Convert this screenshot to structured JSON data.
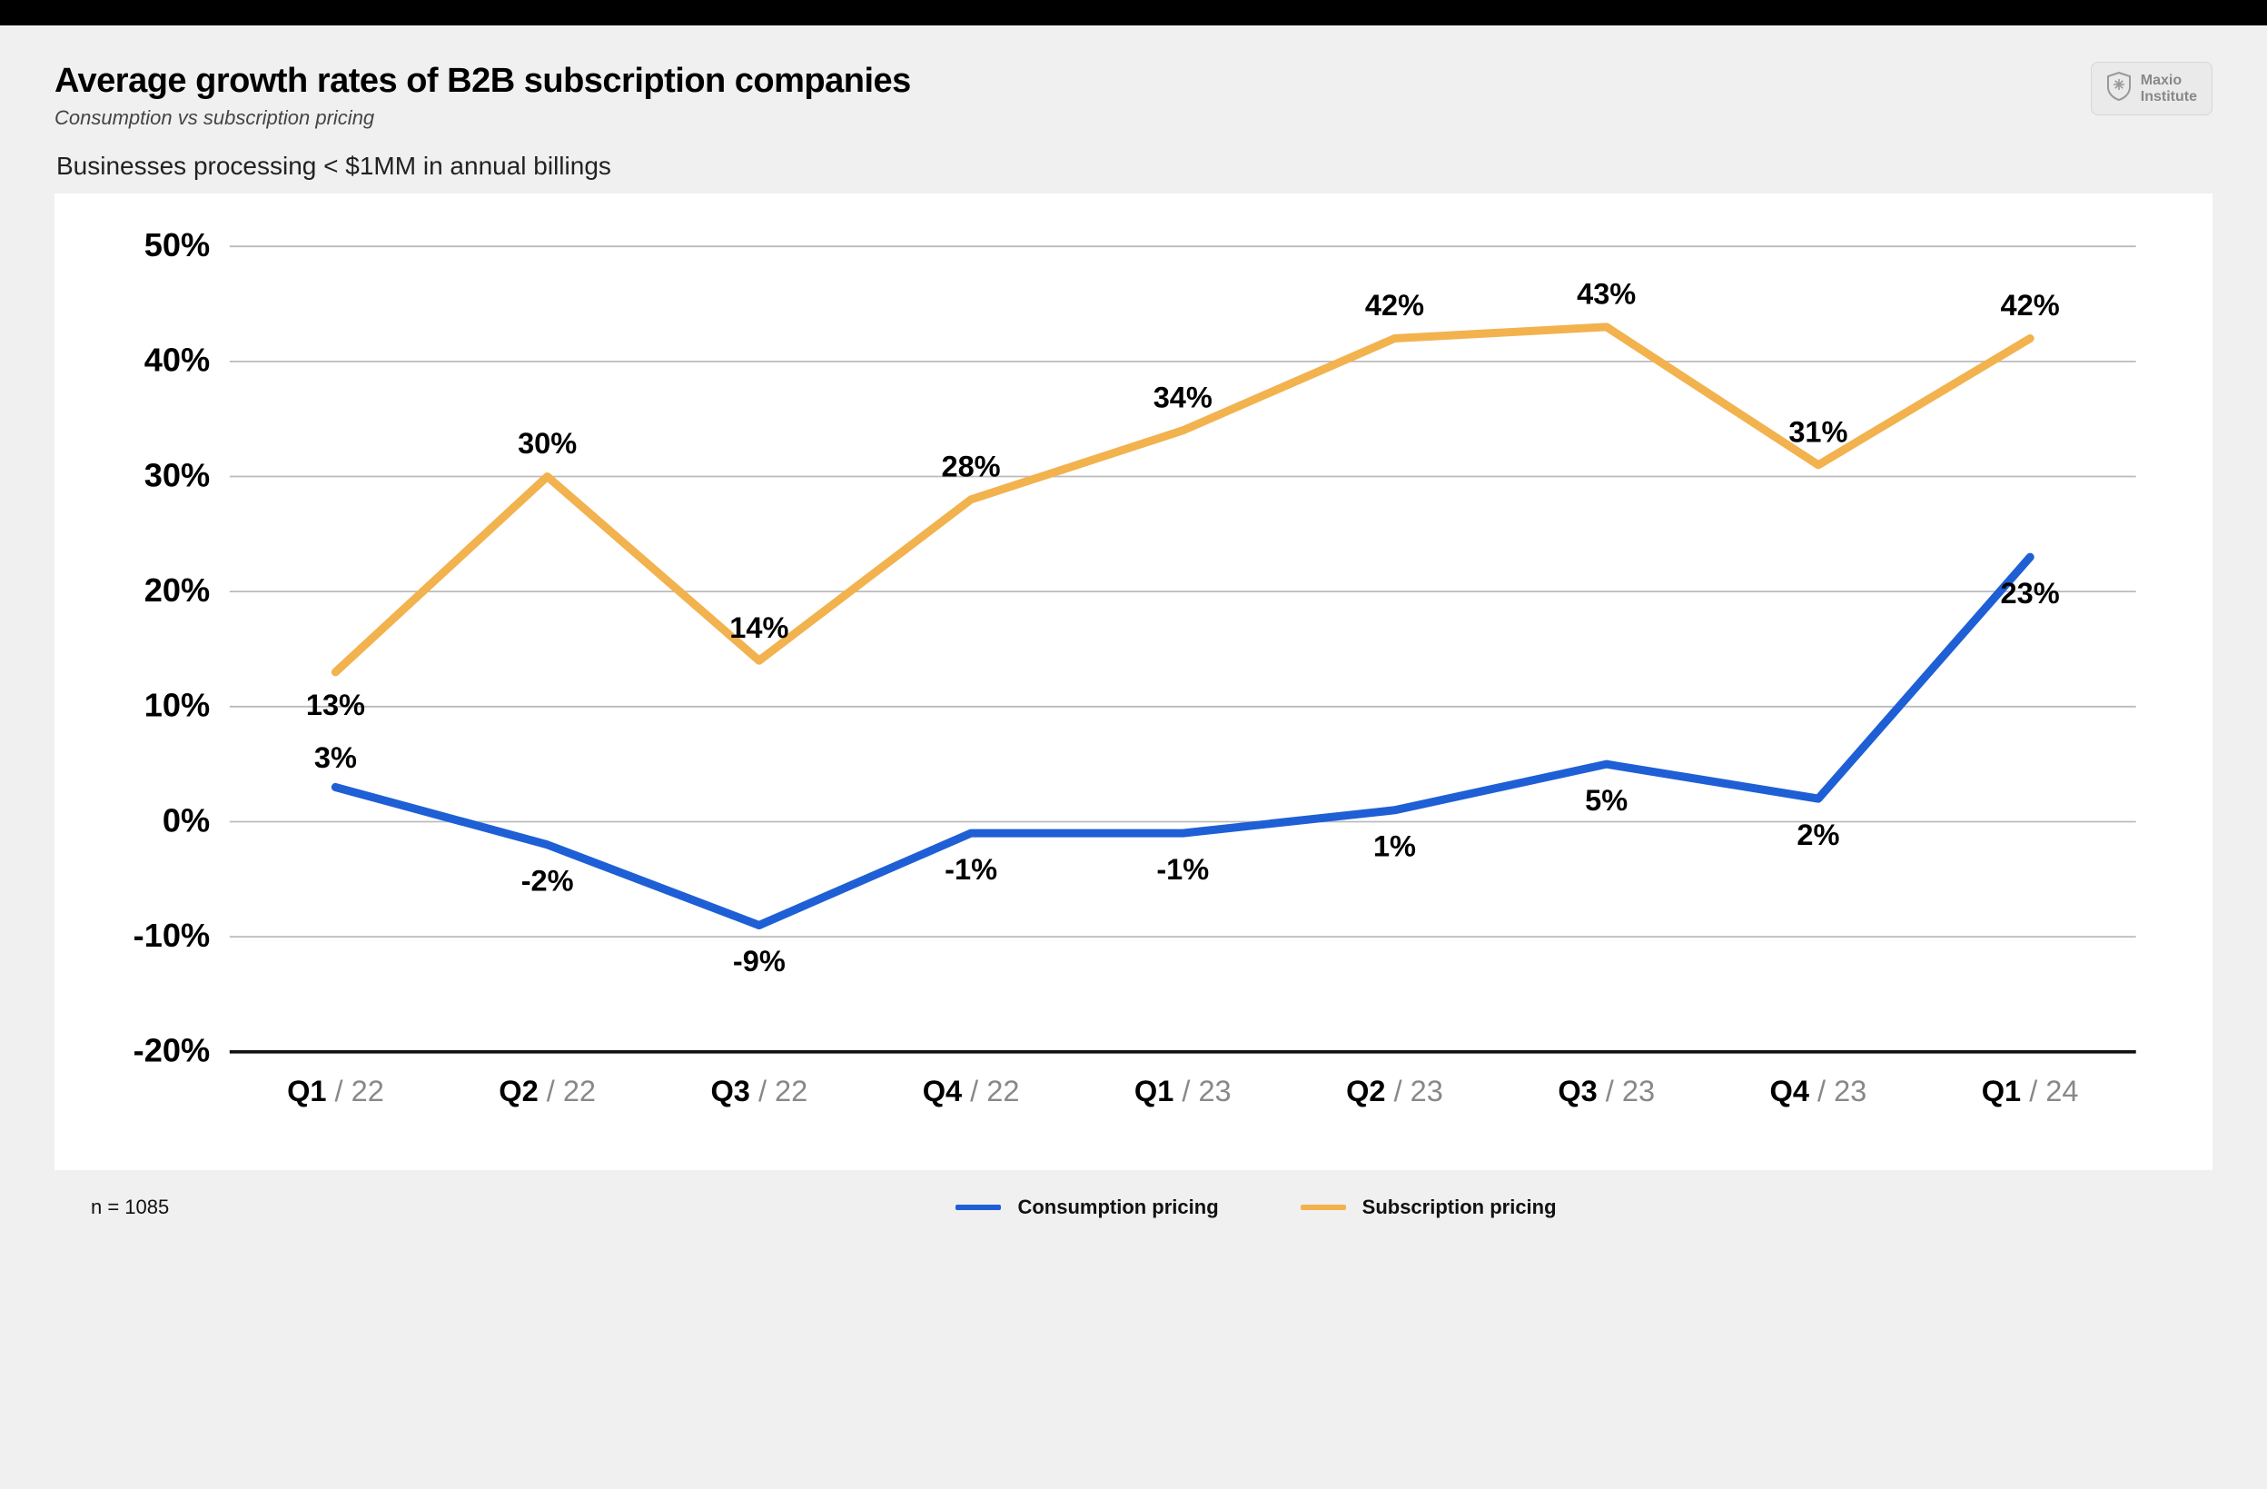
{
  "header": {
    "title": "Average growth rates of B2B subscription companies",
    "subtitle": "Consumption vs subscription pricing",
    "section_label": "Businesses processing < $1MM in annual billings",
    "brand_line1": "Maxio",
    "brand_line2": "Institute"
  },
  "footer": {
    "n_text": "n = 1085"
  },
  "chart": {
    "type": "line",
    "background_color": "#ffffff",
    "page_background": "#f0f0f0",
    "grid_color": "#bbbbbb",
    "axis_color": "#111111",
    "ylim": [
      -20,
      50
    ],
    "ytick_step": 10,
    "yticks": [
      "50%",
      "40%",
      "30%",
      "20%",
      "10%",
      "0%",
      "-10%",
      "-20%"
    ],
    "ytick_values": [
      50,
      40,
      30,
      20,
      10,
      0,
      -10,
      -20
    ],
    "categories": [
      {
        "q": "Q1",
        "y": "22"
      },
      {
        "q": "Q2",
        "y": "22"
      },
      {
        "q": "Q3",
        "y": "22"
      },
      {
        "q": "Q4",
        "y": "22"
      },
      {
        "q": "Q1",
        "y": "23"
      },
      {
        "q": "Q2",
        "y": "23"
      },
      {
        "q": "Q3",
        "y": "23"
      },
      {
        "q": "Q4",
        "y": "23"
      },
      {
        "q": "Q1",
        "y": "24"
      }
    ],
    "line_width": 5,
    "label_fontsize": 18,
    "ytick_fontsize": 20,
    "series": [
      {
        "key": "consumption",
        "label": "Consumption pricing",
        "color": "#1e5fd6",
        "values": [
          3,
          -2,
          -9,
          -1,
          -1,
          1,
          5,
          2,
          23
        ],
        "value_labels": [
          "3%",
          "-2%",
          "-9%",
          "-1%",
          "-1%",
          "1%",
          "5%",
          "2%",
          "23%"
        ],
        "label_side": "below"
      },
      {
        "key": "subscription",
        "label": "Subscription pricing",
        "color": "#f2b24e",
        "values": [
          13,
          30,
          14,
          28,
          34,
          42,
          43,
          31,
          42
        ],
        "value_labels": [
          "13%",
          "30%",
          "14%",
          "28%",
          "34%",
          "42%",
          "43%",
          "31%",
          "42%"
        ],
        "label_side": "above"
      }
    ]
  }
}
